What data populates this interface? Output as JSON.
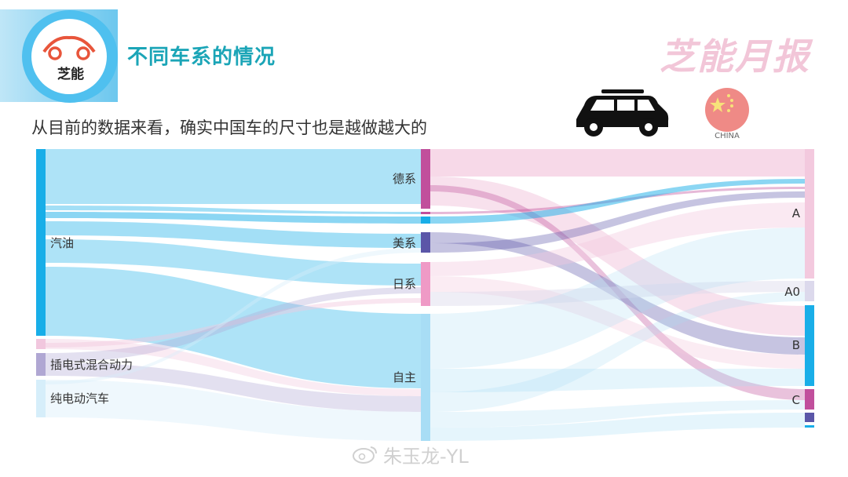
{
  "header": {
    "logo_text": "芝能",
    "page_title": "不同车系的情况",
    "brand": "芝能月报"
  },
  "subtitle": "从目前的数据来看，确实中国车的尺寸也是越做越大的",
  "flag": {
    "caption": "CHINA"
  },
  "watermark": "朱玉龙-YL",
  "colors": {
    "petrol": "#18aee8",
    "phev": "#b0a7d3",
    "bev": "#d6eefa",
    "pink_stub": "#f1c7de",
    "german": "#c14f9c",
    "american": "#5b56a8",
    "japanese": "#ef9ac6",
    "domestic": "#a8ddf5",
    "size_A": "#f3c9de",
    "size_A0": "#dcd9ec",
    "size_B": "#19aee8",
    "size_C": "#c14f9c"
  },
  "sankey": {
    "sources": [
      {
        "label": "汽油"
      },
      {
        "label": ""
      },
      {
        "label": "插电式混合动力"
      },
      {
        "label": "纯电动汽车"
      }
    ],
    "brands": [
      {
        "label": "德系"
      },
      {
        "label": ""
      },
      {
        "label": ""
      },
      {
        "label": "美系"
      },
      {
        "label": "日系"
      },
      {
        "label": "自主"
      }
    ],
    "sizes": [
      {
        "label": "A"
      },
      {
        "label": "A0"
      },
      {
        "label": "B"
      },
      {
        "label": "C"
      },
      {
        "label": ""
      },
      {
        "label": ""
      }
    ]
  }
}
